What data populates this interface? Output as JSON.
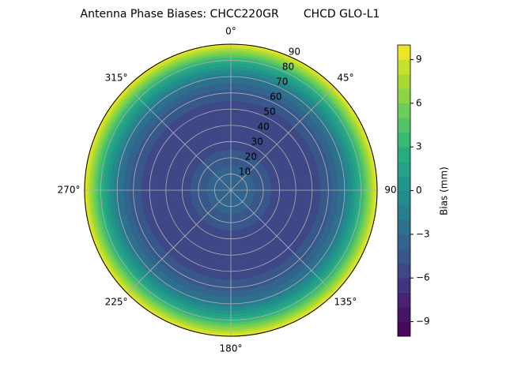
{
  "chart_data": {
    "type": "polar_contour",
    "title": "Antenna Phase Biases: CHCC220GR       CHCD GLO-L1",
    "colorbar_label": "Bias (mm)",
    "r": [
      0,
      10,
      20,
      30,
      40,
      50,
      60,
      70,
      80,
      90
    ],
    "values": [
      -3,
      -3.5,
      -4.5,
      -5.5,
      -6,
      -5.5,
      -4.5,
      -2,
      3,
      10
    ],
    "rlim": [
      0,
      90
    ],
    "rticks": [
      10,
      20,
      30,
      40,
      50,
      60,
      70,
      80,
      90
    ],
    "thetaticks": [
      {
        "value": 0,
        "label": "0°"
      },
      {
        "value": 45,
        "label": "45°"
      },
      {
        "value": 90,
        "label": "90°"
      },
      {
        "value": 135,
        "label": "135°"
      },
      {
        "value": 180,
        "label": "180°"
      },
      {
        "value": 225,
        "label": "225°"
      },
      {
        "value": 270,
        "label": "270°"
      },
      {
        "value": 315,
        "label": "315°"
      }
    ],
    "clim": [
      -10,
      10
    ],
    "levels": [
      -10,
      -9,
      -8,
      -7,
      -6,
      -5,
      -4,
      -3,
      -2,
      -1,
      0,
      1,
      2,
      3,
      4,
      5,
      6,
      7,
      8,
      9,
      10
    ],
    "cticks": [
      {
        "value": -9,
        "label": "−9"
      },
      {
        "value": -6,
        "label": "−6"
      },
      {
        "value": -3,
        "label": "−3"
      },
      0,
      3,
      6,
      9
    ],
    "colormap": "viridis",
    "grid": true
  }
}
